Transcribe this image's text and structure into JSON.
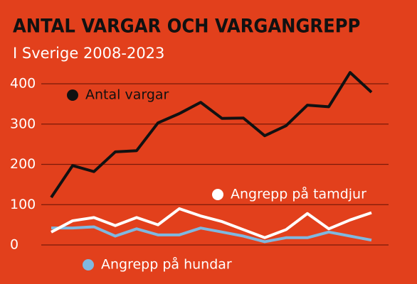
{
  "chart_data": {
    "type": "line",
    "title": "ANTAL VARGAR OCH VARGANGREPP",
    "subtitle": "I Sverige 2008-2023",
    "categories": [
      null,
      null,
      null,
      null,
      null,
      null,
      null,
      null,
      null,
      null,
      null,
      null,
      null,
      null,
      null,
      null
    ],
    "series": [
      {
        "name": "Antal vargar",
        "color": "#111111",
        "values": [
          118,
          197,
          182,
          231,
          234,
          303,
          326,
          354,
          314,
          315,
          271,
          296,
          347,
          343,
          428,
          379
        ]
      },
      {
        "name": "Angrepp på tamdjur",
        "color": "#ffffff",
        "values": [
          32,
          60,
          68,
          48,
          68,
          50,
          90,
          72,
          58,
          38,
          18,
          38,
          78,
          40,
          62,
          80
        ]
      },
      {
        "name": "Angrepp på hundar",
        "color": "#7fb8e0",
        "values": [
          42,
          42,
          45,
          22,
          40,
          25,
          25,
          42,
          32,
          22,
          8,
          18,
          18,
          32,
          22,
          12
        ]
      }
    ],
    "ylim": [
      0,
      400
    ],
    "yticks": [
      0,
      100,
      200,
      300,
      400
    ],
    "grid": true
  }
}
